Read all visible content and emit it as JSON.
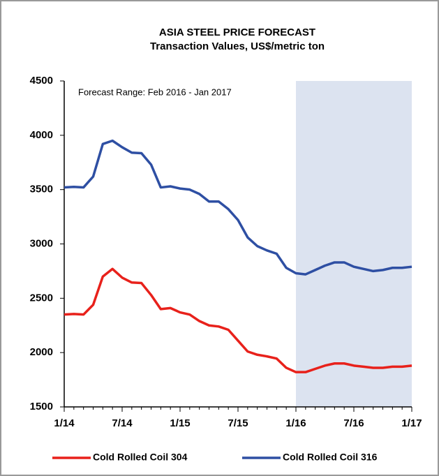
{
  "chart_data": {
    "type": "line",
    "title": "ASIA STEEL PRICE FORECAST",
    "subtitle": "Transaction Values, US$/metric ton",
    "annotation": "Forecast Range: Feb 2016 - Jan 2017",
    "categories": [
      "1/14",
      null,
      null,
      null,
      null,
      null,
      "7/14",
      null,
      null,
      null,
      null,
      null,
      "1/15",
      null,
      null,
      null,
      null,
      null,
      "7/15",
      null,
      null,
      null,
      null,
      null,
      "1/16",
      null,
      null,
      null,
      null,
      null,
      "7/16",
      null,
      null,
      null,
      null,
      null,
      "1/17"
    ],
    "series": [
      {
        "name": "Cold Rolled Coil 304",
        "color": "#e8211b",
        "values": [
          2350,
          2355,
          2350,
          2440,
          2700,
          2770,
          2690,
          2645,
          2640,
          2530,
          2400,
          2410,
          2370,
          2350,
          2290,
          2250,
          2240,
          2210,
          2110,
          2010,
          1980,
          1965,
          1945,
          1860,
          1820,
          1820,
          1850,
          1880,
          1900,
          1900,
          1880,
          1870,
          1860,
          1860,
          1870,
          1870,
          1880
        ]
      },
      {
        "name": "Cold Rolled Coil 316",
        "color": "#2e4fa3",
        "values": [
          3520,
          3525,
          3520,
          3620,
          3920,
          3950,
          3890,
          3840,
          3835,
          3730,
          3520,
          3530,
          3510,
          3500,
          3460,
          3390,
          3390,
          3320,
          3220,
          3060,
          2980,
          2940,
          2910,
          2780,
          2730,
          2720,
          2760,
          2800,
          2830,
          2830,
          2790,
          2770,
          2750,
          2760,
          2780,
          2780,
          2790
        ]
      }
    ],
    "ylim": [
      1500,
      4500
    ],
    "yticks": [
      1500,
      2000,
      2500,
      3000,
      3500,
      4000,
      4500
    ],
    "shade": {
      "from": 24,
      "to": 36,
      "color": "#dce3f0"
    },
    "legend": "bottom"
  }
}
